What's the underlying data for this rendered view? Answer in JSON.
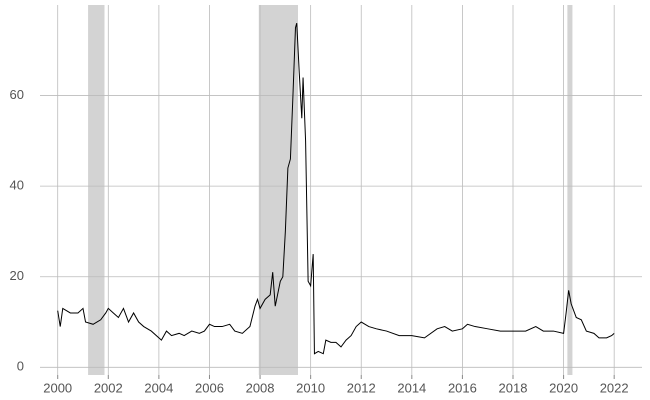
{
  "chart_data": {
    "type": "line",
    "xlim": [
      1999.3,
      2023.1
    ],
    "ylim": [
      -1.7,
      80
    ],
    "xticks": [
      2000,
      2002,
      2004,
      2006,
      2008,
      2010,
      2012,
      2014,
      2016,
      2018,
      2020,
      2022
    ],
    "yticks": [
      0,
      20,
      40,
      60
    ],
    "grid": true,
    "shade_color": "#d3d3d3",
    "shaded_ranges": [
      [
        2001.2,
        2001.85
      ],
      [
        2007.95,
        2009.5
      ],
      [
        2020.15,
        2020.35
      ]
    ],
    "series": [
      {
        "color": "#000000",
        "x": [
          2000.0,
          2000.1,
          2000.2,
          2000.5,
          2000.8,
          2001.0,
          2001.1,
          2001.4,
          2001.7,
          2001.9,
          2002.0,
          2002.2,
          2002.4,
          2002.6,
          2002.8,
          2003.0,
          2003.2,
          2003.4,
          2003.7,
          2004.0,
          2004.1,
          2004.3,
          2004.5,
          2004.8,
          2005.0,
          2005.3,
          2005.6,
          2005.8,
          2006.0,
          2006.2,
          2006.5,
          2006.8,
          2007.0,
          2007.3,
          2007.6,
          2007.8,
          2007.9,
          2008.0,
          2008.2,
          2008.4,
          2008.5,
          2008.6,
          2008.8,
          2008.9,
          2009.0,
          2009.1,
          2009.2,
          2009.3,
          2009.4,
          2009.45,
          2009.55,
          2009.65,
          2009.7,
          2009.8,
          2009.9,
          2010.0,
          2010.1,
          2010.15,
          2010.3,
          2010.5,
          2010.6,
          2010.8,
          2011.0,
          2011.2,
          2011.4,
          2011.6,
          2011.8,
          2012.0,
          2012.3,
          2012.6,
          2013.0,
          2013.5,
          2014.0,
          2014.5,
          2015.0,
          2015.3,
          2015.6,
          2016.0,
          2016.2,
          2016.5,
          2017.0,
          2017.5,
          2018.0,
          2018.5,
          2018.9,
          2019.2,
          2019.6,
          2020.0,
          2020.1,
          2020.2,
          2020.3,
          2020.5,
          2020.7,
          2020.9,
          2021.2,
          2021.4,
          2021.7,
          2021.9,
          2022.0
        ],
        "values": [
          12.5,
          9,
          13,
          12,
          12,
          13,
          10,
          9.5,
          10.5,
          12,
          13,
          12,
          11,
          13,
          10,
          12,
          10,
          9,
          8,
          6.5,
          6,
          8,
          7,
          7.5,
          7,
          8,
          7.5,
          8,
          9.5,
          9,
          9,
          9.5,
          8,
          7.5,
          9,
          13.5,
          15,
          13,
          15,
          16,
          21,
          13.5,
          19,
          20,
          30,
          44,
          46,
          60,
          75,
          76,
          65,
          55,
          64,
          50,
          19,
          18,
          25,
          3,
          3.5,
          3,
          6,
          5.5,
          5.5,
          4.5,
          6,
          7,
          9,
          10,
          9,
          8.5,
          8,
          7,
          7,
          6.5,
          8.5,
          9,
          8,
          8.5,
          9.5,
          9,
          8.5,
          8,
          8,
          8,
          9,
          8,
          8,
          7.5,
          12,
          17,
          14,
          11,
          10.5,
          8,
          7.5,
          6.5,
          6.5,
          7,
          7.5
        ]
      }
    ]
  }
}
